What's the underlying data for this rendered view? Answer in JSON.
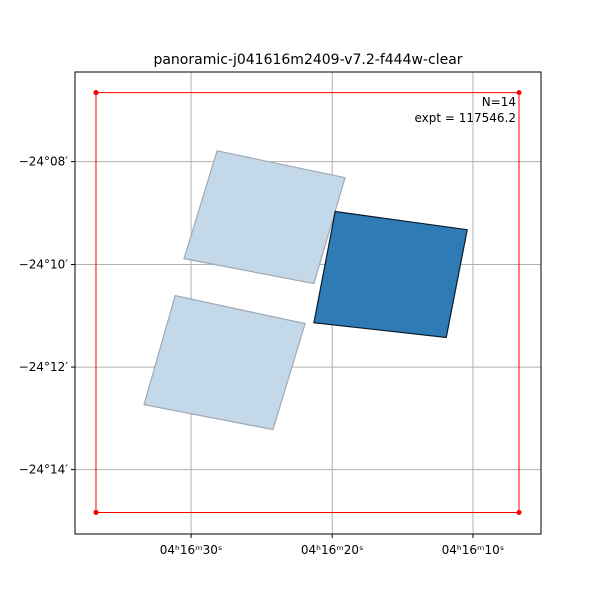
{
  "chart_data": {
    "type": "footprint",
    "title": "panoramic-j041616m2409-v7.2-f444w-clear",
    "annotations": [
      "N=14",
      "expt = 117546.2"
    ],
    "xlim": [
      64.1593,
      64.0216
    ],
    "ylim": [
      -24.1042,
      -24.2542
    ],
    "xticks": [
      {
        "value": 64.125,
        "label": "04ʰ16ᵐ30ˢ"
      },
      {
        "value": 64.0833,
        "label": "04ʰ16ᵐ20ˢ"
      },
      {
        "value": 64.0417,
        "label": "04ʰ16ᵐ10ˢ"
      }
    ],
    "yticks": [
      {
        "value": -24.1333,
        "label": "−24°08′"
      },
      {
        "value": -24.1667,
        "label": "−24°10′"
      },
      {
        "value": -24.2,
        "label": "−24°12′"
      },
      {
        "value": -24.2333,
        "label": "−24°14′"
      }
    ],
    "grid": true,
    "region": {
      "color": "#ff0000",
      "x": [
        64.1531,
        64.0281,
        64.0281,
        64.1531,
        64.1531
      ],
      "y": [
        -24.1109,
        -24.1109,
        -24.2472,
        -24.2472,
        -24.1109
      ]
    },
    "polygons": [
      {
        "color": "#c3d8e8",
        "edgecolor": "#a0aab4",
        "x": [
          64.1173,
          64.0795,
          64.0887,
          64.1271
        ],
        "y": [
          -24.1298,
          -24.1385,
          -24.1729,
          -24.1648
        ]
      },
      {
        "color": "#c3d8e8",
        "edgecolor": "#a0aab4",
        "x": [
          64.1297,
          64.0913,
          64.1008,
          64.1389
        ],
        "y": [
          -24.1768,
          -24.1859,
          -24.2203,
          -24.2122
        ]
      },
      {
        "color": "#2e7bb6",
        "edgecolor": "#0a1a2a",
        "x": [
          64.0824,
          64.0434,
          64.0496,
          64.0887
        ],
        "y": [
          -24.1495,
          -24.1554,
          -24.1904,
          -24.1856
        ]
      }
    ]
  }
}
